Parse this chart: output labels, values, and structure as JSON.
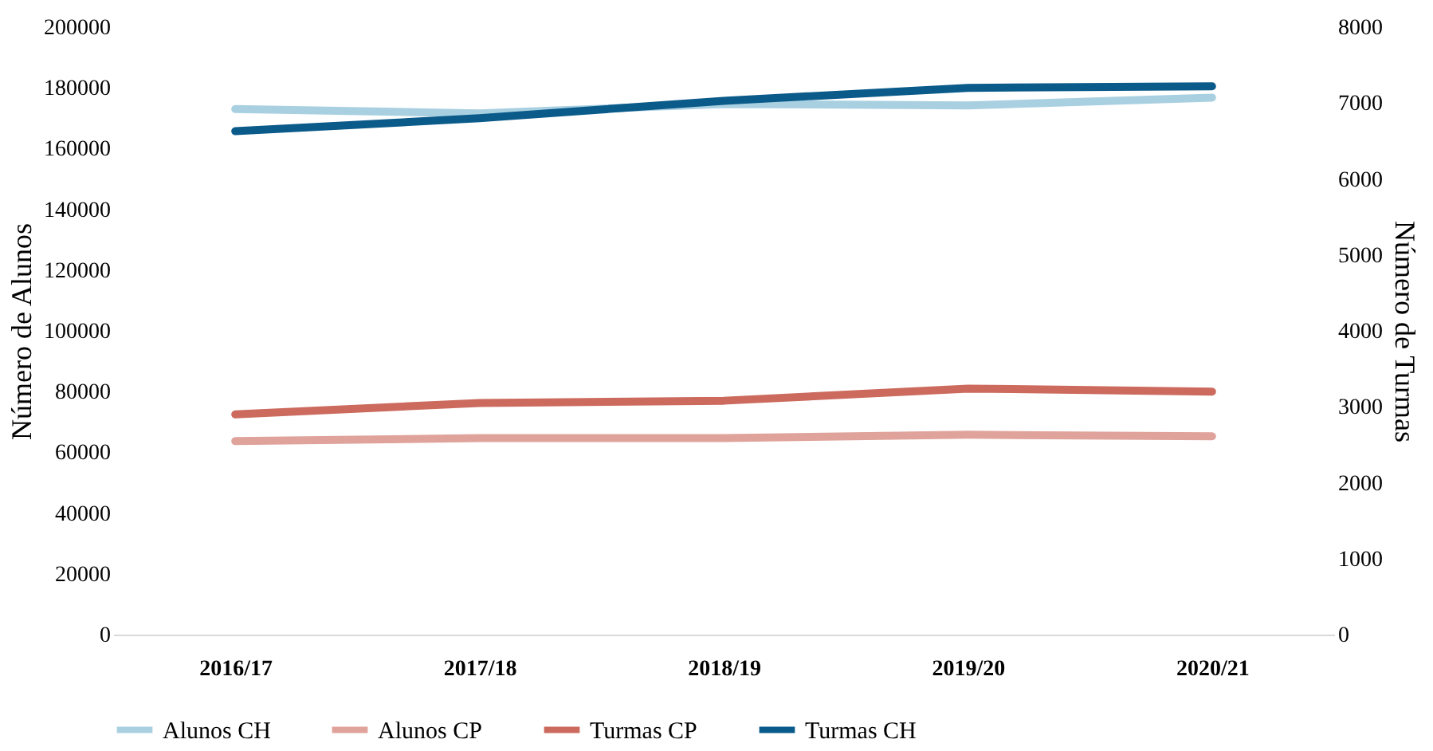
{
  "chart_data": {
    "type": "line",
    "ylabel": "Número de Alunos",
    "y2label": "Número de Turmas",
    "categories": [
      "2016/17",
      "2017/18",
      "2018/19",
      "2019/20",
      "2020/21"
    ],
    "series": [
      {
        "name": "Alunos CH",
        "color": "#a9d0e1",
        "values": [
          173000,
          171600,
          174700,
          174200,
          176800
        ]
      },
      {
        "name": "Alunos CP",
        "color": "#e0a39b",
        "values": [
          63700,
          64700,
          64700,
          65800,
          65300
        ]
      },
      {
        "name": "Turmas CP",
        "color": "#cc6a5e",
        "axis": "y2",
        "values": [
          2900,
          3050,
          3080,
          3240,
          3200
        ]
      },
      {
        "name": "Turmas CH",
        "color": "#0a5a8a",
        "axis": "y2",
        "values": [
          6630,
          6800,
          7030,
          7200,
          7220
        ]
      }
    ],
    "ylim": [
      0,
      200000
    ],
    "yticks": [
      0,
      20000,
      40000,
      60000,
      80000,
      100000,
      120000,
      140000,
      160000,
      180000,
      200000
    ],
    "y2lim": [
      0,
      8000
    ],
    "y2ticks": [
      0,
      1000,
      2000,
      3000,
      4000,
      5000,
      6000,
      7000,
      8000
    ],
    "grid": false,
    "legend": "bottom",
    "line_style": "solid",
    "marker": "none"
  }
}
